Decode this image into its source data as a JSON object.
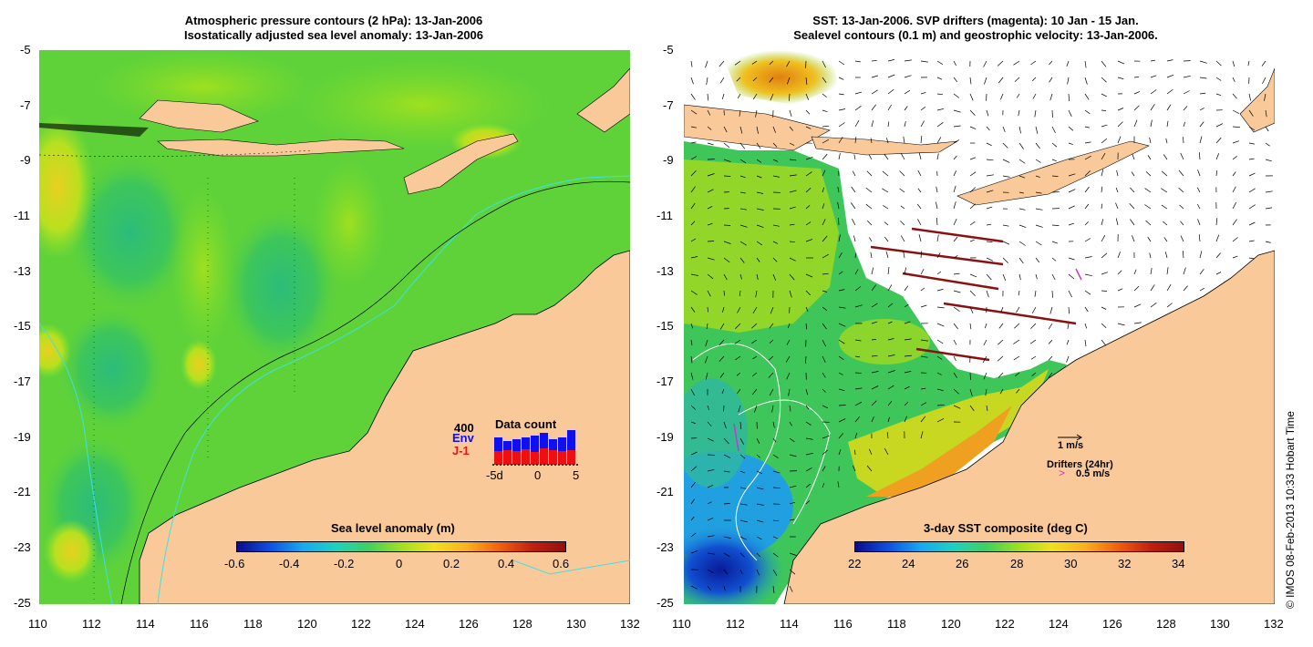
{
  "left_panel": {
    "title_line1": "Atmospheric pressure contours (2 hPa): 13-Jan-2006",
    "title_line2": "Isostatically adjusted sea level anomaly: 13-Jan-2006",
    "colorbar_title": "Sea level anomaly (m)",
    "colorbar_ticks": [
      "-0.6",
      "-0.4",
      "-0.2",
      "0",
      "0.2",
      "0.4",
      "0.6"
    ],
    "inset": {
      "max_label": "400",
      "env_label": "Env",
      "j1_label": "J-1",
      "title": "Data count",
      "x_ticks": [
        "-5d",
        "0",
        "5"
      ]
    }
  },
  "right_panel": {
    "title_line1": "SST: 13-Jan-2006. SVP drifters (magenta): 10 Jan - 15 Jan.",
    "title_line2": "Sealevel contours (0.1 m) and geostrophic velocity: 13-Jan-2006.",
    "colorbar_title": "3-day SST composite (deg C)",
    "colorbar_ticks": [
      "22",
      "24",
      "26",
      "28",
      "30",
      "32",
      "34"
    ],
    "velocity_label": "1 m/s",
    "drifters_label": "Drifters (24hr)",
    "drifter_speed_label": "0.5 m/s"
  },
  "x_ticks": [
    "110",
    "112",
    "114",
    "116",
    "118",
    "120",
    "122",
    "124",
    "126",
    "128",
    "130",
    "132"
  ],
  "y_ticks": [
    "-5",
    "-7",
    "-9",
    "-11",
    "-13",
    "-15",
    "-17",
    "-19",
    "-21",
    "-23",
    "-25"
  ],
  "credit": "© IMOS 08-Feb-2013 10:33 Hobart Time",
  "colors": {
    "land": "#f9c99a",
    "sla_background": "#5fd23a",
    "drifter": "#cc33cc",
    "env_bar": "#1010ee",
    "j1_bar": "#ee1010"
  }
}
